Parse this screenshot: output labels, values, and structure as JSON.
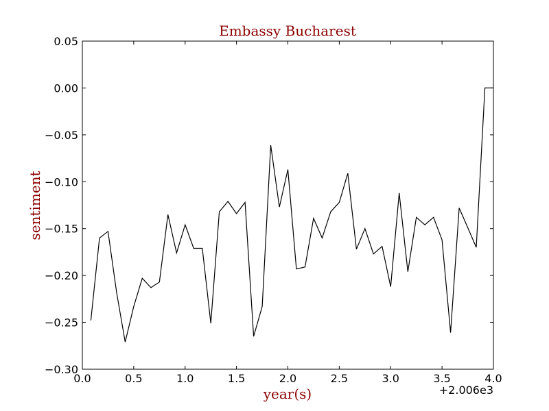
{
  "chart_data": {
    "type": "line",
    "title": "Embassy Bucharest",
    "xlabel": "year(s)",
    "ylabel": "sentiment",
    "x_offset_label": "+2.006e3",
    "xlim": [
      0.0,
      4.0
    ],
    "ylim": [
      -0.3,
      0.05
    ],
    "x_ticks": [
      0.0,
      0.5,
      1.0,
      1.5,
      2.0,
      2.5,
      3.0,
      3.5,
      4.0
    ],
    "x_tick_labels": [
      "0.0",
      "0.5",
      "1.0",
      "1.5",
      "2.0",
      "2.5",
      "3.0",
      "3.5",
      "4.0"
    ],
    "y_ticks": [
      0.05,
      0.0,
      -0.05,
      -0.1,
      -0.15,
      -0.2,
      -0.25,
      -0.3
    ],
    "y_tick_labels": [
      "0.05",
      "0.00",
      "−0.05",
      "−0.10",
      "−0.15",
      "−0.20",
      "−0.25",
      "−0.30"
    ],
    "grid": false,
    "line_color": "#000000",
    "series": [
      {
        "x": [
          0.083,
          0.167,
          0.25,
          0.333,
          0.417,
          0.5,
          0.583,
          0.667,
          0.75,
          0.833,
          0.917,
          1.0,
          1.083,
          1.167,
          1.25,
          1.333,
          1.417,
          1.5,
          1.583,
          1.667,
          1.75,
          1.833,
          1.917,
          2.0,
          2.083,
          2.167,
          2.25,
          2.333,
          2.417,
          2.5,
          2.583,
          2.667,
          2.75,
          2.833,
          2.917,
          3.0,
          3.083,
          3.167,
          3.25,
          3.333,
          3.417,
          3.5,
          3.583,
          3.667,
          3.75,
          3.833,
          3.917,
          4.0
        ],
        "y": [
          -0.248,
          -0.16,
          -0.153,
          -0.218,
          -0.271,
          -0.233,
          -0.203,
          -0.213,
          -0.207,
          -0.135,
          -0.176,
          -0.146,
          -0.171,
          -0.171,
          -0.251,
          -0.132,
          -0.121,
          -0.134,
          -0.122,
          -0.265,
          -0.233,
          -0.061,
          -0.127,
          -0.087,
          -0.193,
          -0.191,
          -0.139,
          -0.16,
          -0.132,
          -0.122,
          -0.091,
          -0.172,
          -0.15,
          -0.177,
          -0.169,
          -0.212,
          -0.112,
          -0.196,
          -0.138,
          -0.146,
          -0.138,
          -0.162,
          -0.261,
          -0.128,
          -0.149,
          -0.17,
          0.0,
          0.0
        ]
      }
    ]
  }
}
